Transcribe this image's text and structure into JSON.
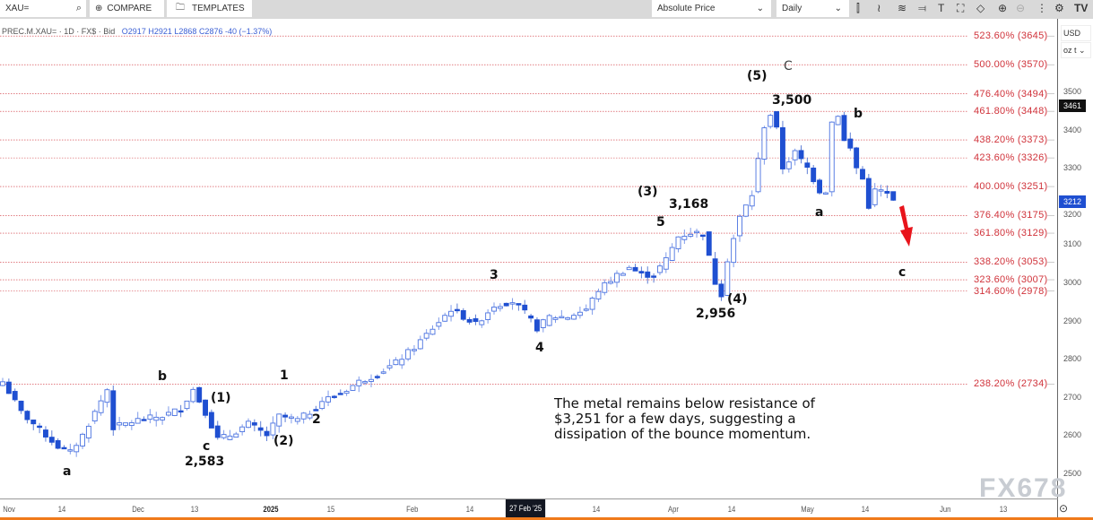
{
  "toolbar": {
    "symbol": "XAU=",
    "compare": "COMPARE",
    "templates": "TEMPLATES",
    "price_mode": "Absolute Price",
    "interval": "Daily",
    "icons": [
      "candles-icon",
      "indicators-icon",
      "studies-icon",
      "drawing-icon",
      "text-icon",
      "rectangle-icon",
      "shape-icon",
      "zoom-in-icon",
      "zoom-out-icon",
      "more-icon",
      "settings-icon",
      "tradingview-logo-icon"
    ]
  },
  "legend": {
    "symbol": "PREC.M.XAU= · 1D · FX$ · Bid",
    "open": "O2917",
    "high": "H2921",
    "low": "L2868",
    "close": "C2876",
    "change": "-40 (−1.37%)"
  },
  "units": {
    "currency": "USD",
    "weight": "oz t"
  },
  "colors": {
    "candle": "#1f4fd1",
    "fib": "#d0323a",
    "arrow": "#e8141b",
    "accent": "#f07a1b"
  },
  "fib_levels": [
    {
      "label": "523.60% (3645)",
      "price": 3645
    },
    {
      "label": "500.00% (3570)",
      "price": 3570
    },
    {
      "label": "476.40% (3494)",
      "price": 3494
    },
    {
      "label": "461.80% (3448)",
      "price": 3448
    },
    {
      "label": "438.20% (3373)",
      "price": 3373
    },
    {
      "label": "423.60% (3326)",
      "price": 3326
    },
    {
      "label": "400.00% (3251)",
      "price": 3251
    },
    {
      "label": "376.40% (3175)",
      "price": 3175
    },
    {
      "label": "361.80% (3129)",
      "price": 3129
    },
    {
      "label": "338.20% (3053)",
      "price": 3053
    },
    {
      "label": "323.60% (3007)",
      "price": 3007
    },
    {
      "label": "314.60% (2978)",
      "price": 2978
    },
    {
      "label": "238.20% (2734)",
      "price": 2734
    }
  ],
  "price_axis": [
    "3500",
    "3400",
    "3300",
    "3200",
    "3100",
    "3000",
    "2900",
    "2800",
    "2700",
    "2600",
    "2500"
  ],
  "price_tags": {
    "high": "3461",
    "last": "3212"
  },
  "x_axis": [
    "Nov",
    "14",
    "Dec",
    "13",
    "2025",
    "15",
    "Feb",
    "14",
    "27 Feb '25",
    "14",
    "Apr",
    "14",
    "May",
    "14",
    "Jun",
    "13"
  ],
  "annotations": {
    "a1": "a",
    "b1": "b",
    "c1": "c",
    "low1": "2,583",
    "w1": "(1)",
    "w2": "(2)",
    "s1": "1",
    "s2": "2",
    "s3": "3",
    "s4": "4",
    "s5": "5",
    "w3": "(3)",
    "high3": "3,168",
    "w4": "(4)",
    "low4": "2,956",
    "w5": "(5)",
    "C": "C",
    "high5": "3,500",
    "a2": "a",
    "b2": "b",
    "c2": "c"
  },
  "note": "The metal remains below resistance of $3,251 for a few days, suggesting a dissipation of the bounce momentum.",
  "watermark": "FX678",
  "chart_data": {
    "type": "candlestick",
    "y_range": [
      2480,
      3660
    ],
    "anchors": [
      [
        0,
        2740
      ],
      [
        3,
        2660
      ],
      [
        5,
        2630
      ],
      [
        7,
        2600
      ],
      [
        9,
        2570
      ],
      [
        11,
        2555
      ],
      [
        13,
        2600
      ],
      [
        15,
        2660
      ],
      [
        17,
        2720
      ],
      [
        18,
        2620
      ],
      [
        22,
        2640
      ],
      [
        26,
        2650
      ],
      [
        29,
        2670
      ],
      [
        31,
        2720
      ],
      [
        33,
        2660
      ],
      [
        35,
        2590
      ],
      [
        37,
        2600
      ],
      [
        40,
        2630
      ],
      [
        43,
        2600
      ],
      [
        45,
        2650
      ],
      [
        48,
        2640
      ],
      [
        50,
        2660
      ],
      [
        52,
        2690
      ],
      [
        55,
        2710
      ],
      [
        58,
        2740
      ],
      [
        61,
        2760
      ],
      [
        64,
        2790
      ],
      [
        67,
        2830
      ],
      [
        70,
        2880
      ],
      [
        73,
        2930
      ],
      [
        75,
        2910
      ],
      [
        77,
        2890
      ],
      [
        80,
        2940
      ],
      [
        83,
        2950
      ],
      [
        85,
        2920
      ],
      [
        87,
        2880
      ],
      [
        89,
        2910
      ],
      [
        92,
        2910
      ],
      [
        95,
        2930
      ],
      [
        97,
        2980
      ],
      [
        100,
        3020
      ],
      [
        102,
        3040
      ],
      [
        104,
        3020
      ],
      [
        106,
        3020
      ],
      [
        108,
        3060
      ],
      [
        110,
        3120
      ],
      [
        112,
        3130
      ],
      [
        114,
        3130
      ],
      [
        116,
        3000
      ],
      [
        117,
        2970
      ],
      [
        118,
        3060
      ],
      [
        120,
        3170
      ],
      [
        122,
        3230
      ],
      [
        124,
        3410
      ],
      [
        125,
        3440
      ],
      [
        126,
        3400
      ],
      [
        127,
        3300
      ],
      [
        129,
        3340
      ],
      [
        131,
        3300
      ],
      [
        133,
        3240
      ],
      [
        134,
        3240
      ],
      [
        135,
        3420
      ],
      [
        136,
        3440
      ],
      [
        137,
        3370
      ],
      [
        138,
        3350
      ],
      [
        139,
        3300
      ],
      [
        140,
        3270
      ],
      [
        141,
        3200
      ],
      [
        142,
        3240
      ],
      [
        143,
        3240
      ],
      [
        144,
        3230
      ],
      [
        145,
        3212
      ]
    ]
  }
}
